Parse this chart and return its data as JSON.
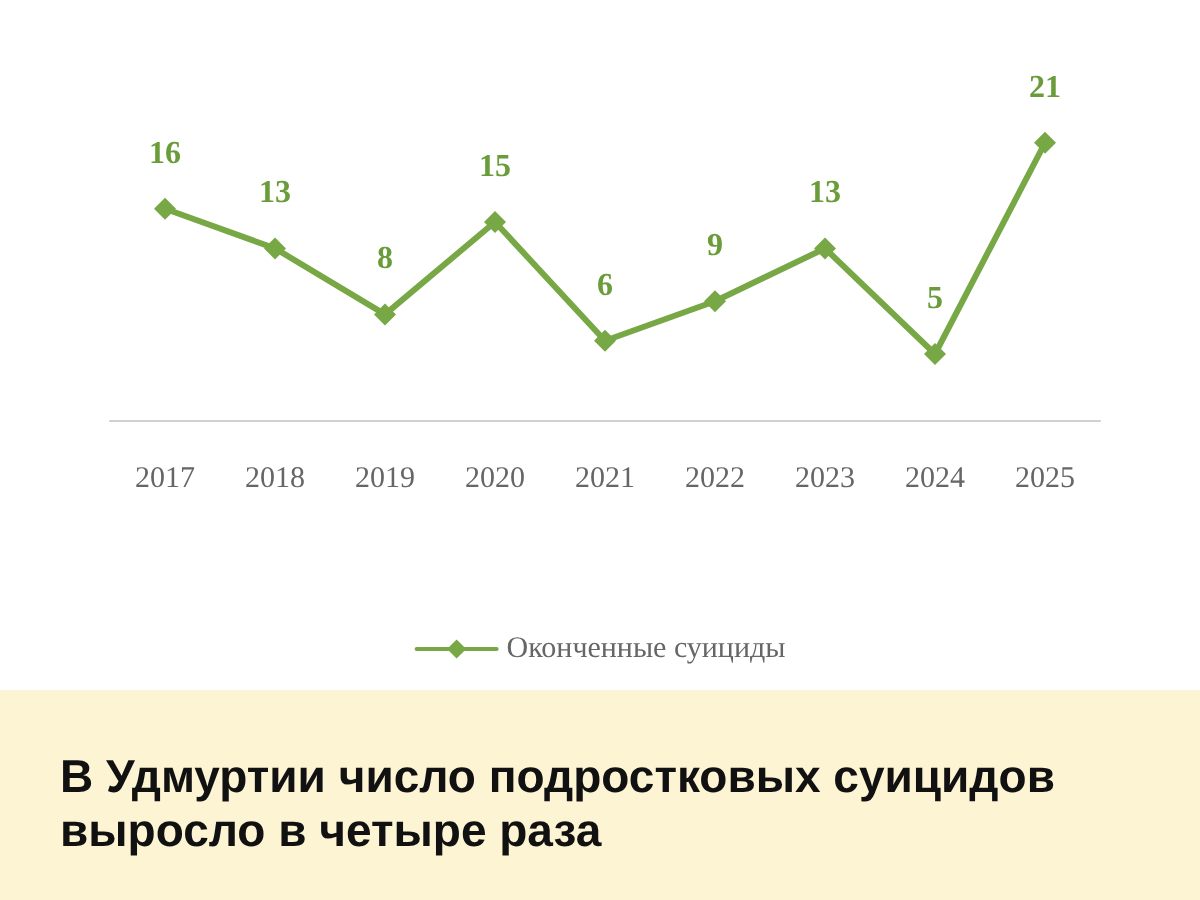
{
  "chart_data": {
    "type": "line",
    "title": "В Удмуртии число подростковых суицидов выросло в четыре раза",
    "categories": [
      "2017",
      "2018",
      "2019",
      "2020",
      "2021",
      "2022",
      "2023",
      "2024",
      "2025"
    ],
    "series": [
      {
        "name": "Оконченные суициды",
        "color": "#77a845",
        "values": [
          16,
          13,
          8,
          15,
          6,
          9,
          13,
          5,
          21
        ]
      }
    ],
    "data_labels": true,
    "legend": "bottom",
    "marker": "diamond",
    "grid": false
  }
}
